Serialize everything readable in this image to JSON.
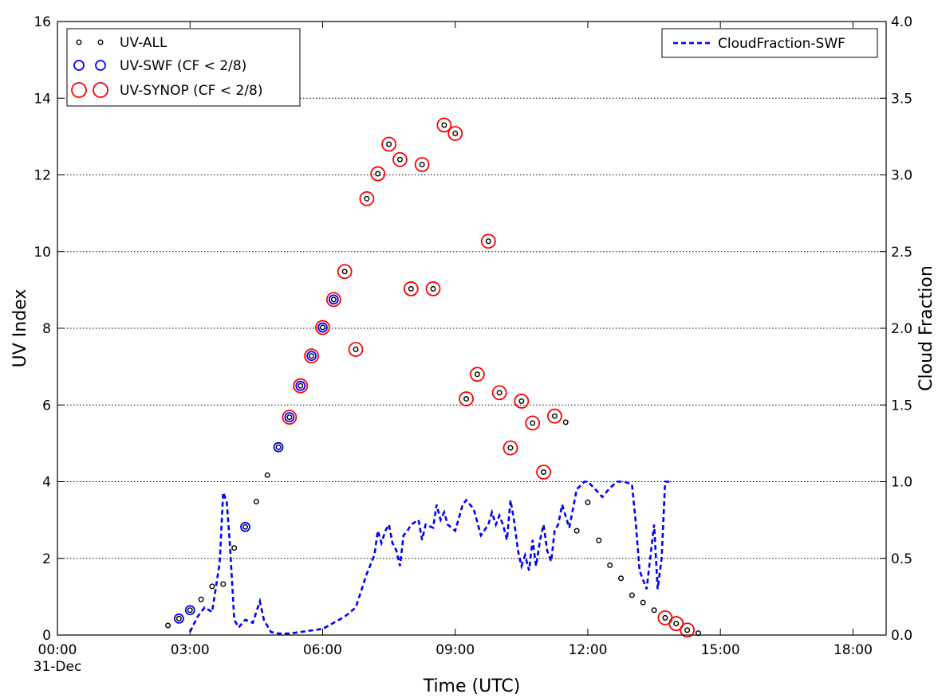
{
  "chart_data": {
    "type": "scatter",
    "xlabel": "Time (UTC)",
    "ylabel": "UV Index",
    "y2label": "Cloud Fraction",
    "x_unit": "hours",
    "xlim": [
      0,
      18.75
    ],
    "ylim": [
      0,
      16
    ],
    "y2lim": [
      0,
      4.0
    ],
    "x_ticks": [
      {
        "value": 0,
        "label": "00:00",
        "sublabel": "31-Dec"
      },
      {
        "value": 3,
        "label": "03:00"
      },
      {
        "value": 6,
        "label": "06:00"
      },
      {
        "value": 9,
        "label": "09:00"
      },
      {
        "value": 12,
        "label": "12:00"
      },
      {
        "value": 15,
        "label": "15:00"
      },
      {
        "value": 18,
        "label": "18:00"
      }
    ],
    "y_ticks": [
      0,
      2,
      4,
      6,
      8,
      10,
      12,
      14,
      16
    ],
    "y2_ticks": [
      "0.0",
      "0.5",
      "1.0",
      "1.5",
      "2.0",
      "2.5",
      "3.0",
      "3.5",
      "4.0"
    ],
    "grid": "horizontal-dotted",
    "legend_left": "top-left",
    "legend_right": "top-right",
    "colors": {
      "all": "#000000",
      "swf": "#0000ff",
      "synop": "#ff0000",
      "cloud": "#0000ff"
    },
    "series": [
      {
        "name": "UV-ALL",
        "marker": "small-black-circle",
        "axis": "left",
        "x": [
          2.5,
          2.75,
          3.0,
          3.25,
          3.5,
          3.75,
          4.0,
          4.25,
          4.5,
          4.75,
          5.0,
          5.25,
          5.5,
          5.75,
          6.0,
          6.25,
          6.5,
          6.75,
          7.0,
          7.25,
          7.5,
          7.75,
          8.0,
          8.25,
          8.5,
          8.75,
          9.0,
          9.25,
          9.5,
          9.75,
          10.0,
          10.25,
          10.5,
          10.75,
          11.0,
          11.25,
          11.5,
          11.75,
          12.0,
          12.25,
          12.5,
          12.75,
          13.0,
          13.25,
          13.5,
          13.75,
          14.0,
          14.25,
          14.5
        ],
        "y": [
          0.25,
          0.43,
          0.65,
          0.93,
          1.27,
          1.33,
          2.27,
          2.82,
          3.48,
          4.17,
          4.9,
          5.68,
          6.5,
          7.28,
          8.02,
          8.75,
          9.48,
          7.45,
          11.38,
          12.03,
          12.8,
          12.4,
          9.03,
          12.27,
          9.03,
          13.3,
          13.08,
          6.16,
          6.8,
          10.27,
          6.32,
          4.88,
          6.1,
          5.53,
          4.25,
          5.71,
          5.55,
          2.72,
          3.46,
          2.47,
          1.82,
          1.48,
          1.04,
          0.85,
          0.65,
          0.45,
          0.3,
          0.13,
          0.05
        ]
      },
      {
        "name": "UV-SWF (CF < 2/8)",
        "marker": "blue-ring",
        "axis": "left",
        "x": [
          2.75,
          3.0,
          4.25,
          5.0,
          5.25,
          5.5,
          5.75,
          6.0,
          6.25
        ],
        "y": [
          0.43,
          0.65,
          2.82,
          4.9,
          5.68,
          6.5,
          7.28,
          8.02,
          8.75
        ]
      },
      {
        "name": "UV-SYNOP (CF < 2/8)",
        "marker": "red-ring",
        "axis": "left",
        "x": [
          5.25,
          5.5,
          5.75,
          6.0,
          6.25,
          6.5,
          6.75,
          7.0,
          7.25,
          7.5,
          7.75,
          8.0,
          8.25,
          8.5,
          8.75,
          9.0,
          9.25,
          9.5,
          9.75,
          10.0,
          10.25,
          10.5,
          10.75,
          11.0,
          11.25,
          13.75,
          14.0,
          14.25
        ],
        "y": [
          5.68,
          6.5,
          7.28,
          8.02,
          8.75,
          9.48,
          7.45,
          11.38,
          12.03,
          12.8,
          12.4,
          9.03,
          12.27,
          9.03,
          13.3,
          13.08,
          6.16,
          6.8,
          10.27,
          6.32,
          4.88,
          6.1,
          5.53,
          4.25,
          5.71,
          0.45,
          0.3,
          0.13
        ]
      },
      {
        "name": "CloudFraction-SWF",
        "marker": "dashed-line",
        "axis": "right",
        "x": [
          3.0,
          3.17,
          3.33,
          3.5,
          3.67,
          3.75,
          3.83,
          3.9,
          4.0,
          4.1,
          4.25,
          4.42,
          4.58,
          4.67,
          4.83,
          5.0,
          5.25,
          5.5,
          5.75,
          6.0,
          6.25,
          6.5,
          6.75,
          7.0,
          7.17,
          7.25,
          7.33,
          7.42,
          7.5,
          7.58,
          7.67,
          7.75,
          7.83,
          7.92,
          8.0,
          8.17,
          8.25,
          8.33,
          8.5,
          8.58,
          8.67,
          8.75,
          8.83,
          9.0,
          9.17,
          9.25,
          9.42,
          9.58,
          9.75,
          9.83,
          9.92,
          10.0,
          10.08,
          10.17,
          10.25,
          10.33,
          10.42,
          10.5,
          10.58,
          10.67,
          10.75,
          10.83,
          10.92,
          11.0,
          11.08,
          11.17,
          11.25,
          11.33,
          11.42,
          11.58,
          11.75,
          11.92,
          12.0,
          12.17,
          12.33,
          12.5,
          12.67,
          12.83,
          13.0,
          13.08,
          13.17,
          13.33,
          13.5,
          13.58,
          13.67,
          13.75,
          13.92
        ],
        "y": [
          0.02,
          0.12,
          0.18,
          0.15,
          0.47,
          0.93,
          0.87,
          0.6,
          0.1,
          0.05,
          0.1,
          0.08,
          0.22,
          0.1,
          0.02,
          0.01,
          0.01,
          0.02,
          0.03,
          0.04,
          0.08,
          0.12,
          0.18,
          0.4,
          0.52,
          0.68,
          0.6,
          0.68,
          0.72,
          0.6,
          0.55,
          0.45,
          0.65,
          0.68,
          0.72,
          0.75,
          0.62,
          0.72,
          0.7,
          0.85,
          0.75,
          0.8,
          0.72,
          0.68,
          0.85,
          0.88,
          0.82,
          0.65,
          0.72,
          0.8,
          0.72,
          0.78,
          0.72,
          0.62,
          0.88,
          0.75,
          0.55,
          0.45,
          0.52,
          0.42,
          0.62,
          0.45,
          0.62,
          0.72,
          0.55,
          0.48,
          0.68,
          0.72,
          0.85,
          0.7,
          0.95,
          1.0,
          1.0,
          0.95,
          0.9,
          0.96,
          1.0,
          1.0,
          0.98,
          0.75,
          0.42,
          0.3,
          0.72,
          0.3,
          0.5,
          1.0,
          1.0
        ]
      }
    ]
  }
}
